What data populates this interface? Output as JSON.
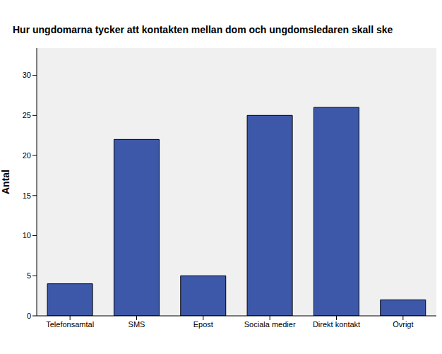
{
  "chart_data": {
    "type": "bar",
    "title": "Hur ungdomarna tycker att kontakten mellan dom och ungdomsledaren skall ske",
    "y_label": "Antal",
    "categories": [
      "Telefonsamtal",
      "SMS",
      "Epost",
      "Sociala medier",
      "Direkt kontakt",
      "Övrigt"
    ],
    "values": [
      4,
      22,
      5,
      25,
      26,
      2
    ],
    "color": "#3d58a8",
    "ylim": [
      0,
      33.4
    ],
    "yticks": [
      0,
      5,
      10,
      15,
      20,
      25,
      30
    ],
    "grid": false
  }
}
